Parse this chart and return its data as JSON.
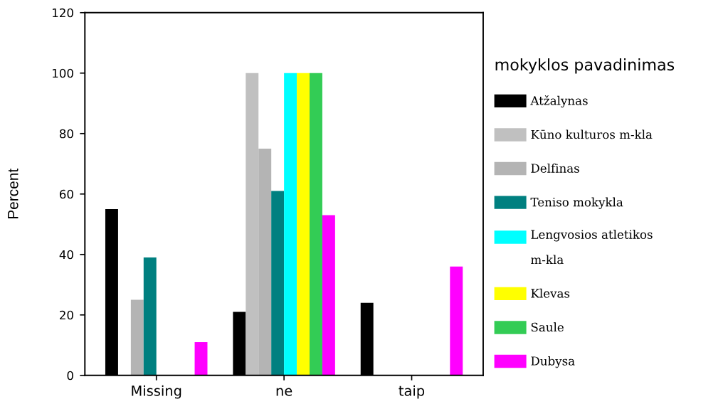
{
  "chart_data": {
    "type": "bar",
    "ylabel": "Percent",
    "legend_title": "mokyklos pavadinimas",
    "categories": [
      "Missing",
      "ne",
      "taip"
    ],
    "series": [
      {
        "name": "Atžalynas",
        "color": "#000000",
        "values": [
          55,
          21,
          24
        ]
      },
      {
        "name": "Kūno kulturos m-kla",
        "color": "#c0c0c0",
        "values": [
          0,
          100,
          0
        ]
      },
      {
        "name": "Delfinas",
        "color": "#b4b4b4",
        "values": [
          25,
          75,
          0
        ]
      },
      {
        "name": "Teniso mokykla",
        "color": "#008080",
        "values": [
          39,
          61,
          0
        ]
      },
      {
        "name": "Lengvosios atletikos\nm-kla",
        "color": "#00ffff",
        "values": [
          0,
          100,
          0
        ]
      },
      {
        "name": "Klevas",
        "color": "#ffff00",
        "values": [
          0,
          100,
          0
        ]
      },
      {
        "name": "Saule",
        "color": "#33cc55",
        "values": [
          0,
          100,
          0
        ]
      },
      {
        "name": "Dubysa",
        "color": "#ff00ff",
        "values": [
          11,
          53,
          36
        ]
      }
    ],
    "ylim": [
      0,
      120
    ],
    "yticks": [
      0,
      20,
      40,
      60,
      80,
      100,
      120
    ],
    "legend": "right"
  }
}
